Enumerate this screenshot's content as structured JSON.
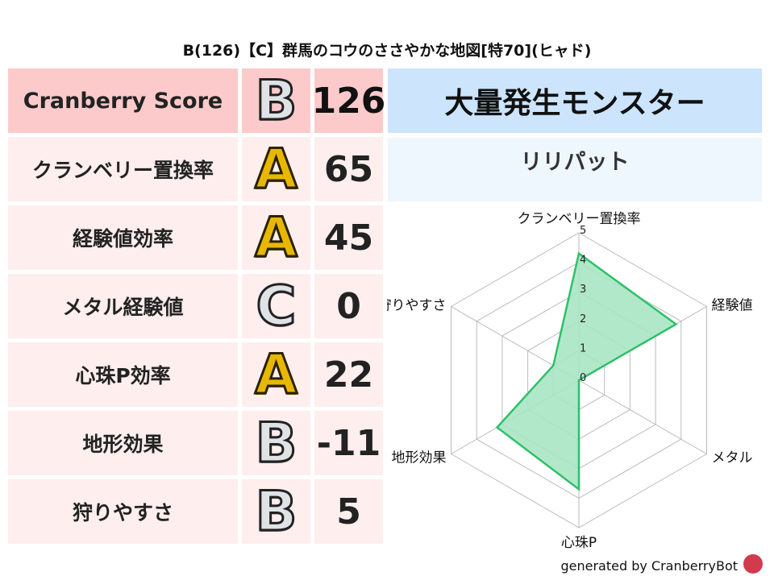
{
  "title": "B(126)【C】群馬のコウのささやかな地図[特70](ヒャド)",
  "score": {
    "label": "Cranberry Score",
    "grade": "B",
    "value": "126"
  },
  "rows": [
    {
      "label": "クランベリー置換率",
      "grade": "A",
      "value": "65"
    },
    {
      "label": "経験値効率",
      "grade": "A",
      "value": "45"
    },
    {
      "label": "メタル経験値",
      "grade": "C",
      "value": "0"
    },
    {
      "label": "心珠P効率",
      "grade": "A",
      "value": "22"
    },
    {
      "label": "地形効果",
      "grade": "B",
      "value": "-11"
    },
    {
      "label": "狩りやすさ",
      "grade": "B",
      "value": "5"
    }
  ],
  "monster": {
    "header": "大量発生モンスター",
    "name": "リリパット"
  },
  "footer": "generated by CranberryBot",
  "colors": {
    "fill": "#a8e6c4",
    "stroke": "#2fc06a",
    "header_pink": "#fccaca",
    "header_blue": "#cce4fc"
  },
  "chart_data": {
    "type": "radar",
    "categories": [
      "クランベリー置換率",
      "経験値",
      "メタル",
      "心珠P",
      "地形効果",
      "狩りやすさ"
    ],
    "values": [
      4.3,
      3.8,
      0,
      3.7,
      3.2,
      1.0
    ],
    "rlim": [
      0,
      5
    ],
    "ticks": [
      "0",
      "1",
      "2",
      "3",
      "4",
      "5"
    ],
    "grid": true
  }
}
